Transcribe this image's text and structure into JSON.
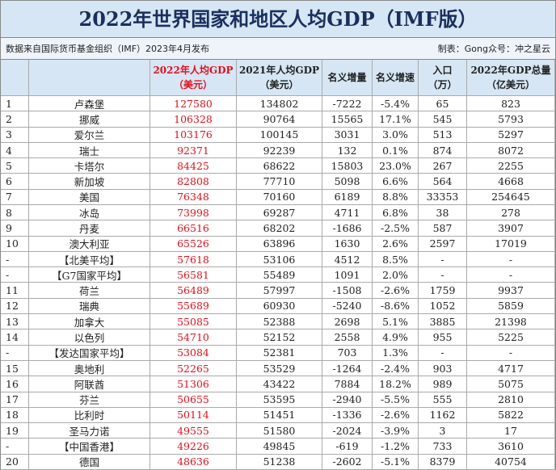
{
  "title": "2022年世界国家和地区人均GDP（IMF版）",
  "subtitle": {
    "left": "数据来自国际货币基金组织（IMF）2023年4月发布",
    "right": "制表：Gong众号：冲之星云"
  },
  "table": {
    "header": [
      [],
      [],
      [
        "2022年人均GDP",
        "（美元）"
      ],
      [
        "2021年人均GDP",
        "（美元）"
      ],
      [
        "名义增量"
      ],
      [
        "名义增速"
      ],
      [
        "入口",
        "（万）"
      ],
      [
        "2022年GDP总量",
        "（亿美元）"
      ]
    ],
    "rows": [
      [
        "1",
        "卢森堡",
        "127580",
        "134802",
        "-7222",
        "-5.4%",
        "65",
        "823"
      ],
      [
        "2",
        "挪威",
        "106328",
        "90764",
        "15565",
        "17.1%",
        "545",
        "5793"
      ],
      [
        "3",
        "爱尔兰",
        "103176",
        "100145",
        "3031",
        "3.0%",
        "513",
        "5297"
      ],
      [
        "4",
        "瑞士",
        "92371",
        "92239",
        "132",
        "0.1%",
        "874",
        "8072"
      ],
      [
        "5",
        "卡塔尔",
        "84425",
        "68622",
        "15803",
        "23.0%",
        "267",
        "2255"
      ],
      [
        "6",
        "新加坡",
        "82808",
        "77710",
        "5098",
        "6.6%",
        "564",
        "4668"
      ],
      [
        "7",
        "美国",
        "76348",
        "70160",
        "6189",
        "8.8%",
        "33353",
        "254645"
      ],
      [
        "8",
        "冰岛",
        "73998",
        "69287",
        "4711",
        "6.8%",
        "38",
        "278"
      ],
      [
        "9",
        "丹麦",
        "66516",
        "68202",
        "-1686",
        "-2.5%",
        "587",
        "3907"
      ],
      [
        "10",
        "澳大利亚",
        "65526",
        "63896",
        "1630",
        "2.6%",
        "2597",
        "17019"
      ],
      [
        "-",
        "【北美平均】",
        "57618",
        "53106",
        "4512",
        "8.5%",
        "-",
        "-"
      ],
      [
        "-",
        "【G7国家平均】",
        "56581",
        "55489",
        "1091",
        "2.0%",
        "-",
        "-"
      ],
      [
        "11",
        "荷兰",
        "56489",
        "57997",
        "-1508",
        "-2.6%",
        "1759",
        "9937"
      ],
      [
        "12",
        "瑞典",
        "55689",
        "60930",
        "-5240",
        "-8.6%",
        "1052",
        "5859"
      ],
      [
        "13",
        "加拿大",
        "55085",
        "52388",
        "2698",
        "5.1%",
        "3885",
        "21398"
      ],
      [
        "14",
        "以色列",
        "54710",
        "52152",
        "2558",
        "4.9%",
        "955",
        "5225"
      ],
      [
        "-",
        "【发达国家平均】",
        "53084",
        "52381",
        "703",
        "1.3%",
        "-",
        "-"
      ],
      [
        "15",
        "奥地利",
        "52265",
        "53529",
        "-1264",
        "-2.4%",
        "903",
        "4717"
      ],
      [
        "16",
        "阿联酋",
        "51306",
        "43422",
        "7884",
        "18.2%",
        "989",
        "5075"
      ],
      [
        "17",
        "芬兰",
        "50655",
        "53595",
        "-2940",
        "-5.5%",
        "555",
        "2810"
      ],
      [
        "18",
        "比利时",
        "50114",
        "51451",
        "-1336",
        "-2.6%",
        "1162",
        "5822"
      ],
      [
        "19",
        "圣马力诺",
        "49555",
        "51580",
        "-2024",
        "-3.9%",
        "3",
        "17"
      ],
      [
        "-",
        "【中国香港】",
        "49226",
        "49845",
        "-619",
        "-1.2%",
        "733",
        "3610"
      ],
      [
        "20",
        "德国",
        "48636",
        "51238",
        "-2602",
        "-5.1%",
        "8379",
        "40754"
      ]
    ]
  }
}
